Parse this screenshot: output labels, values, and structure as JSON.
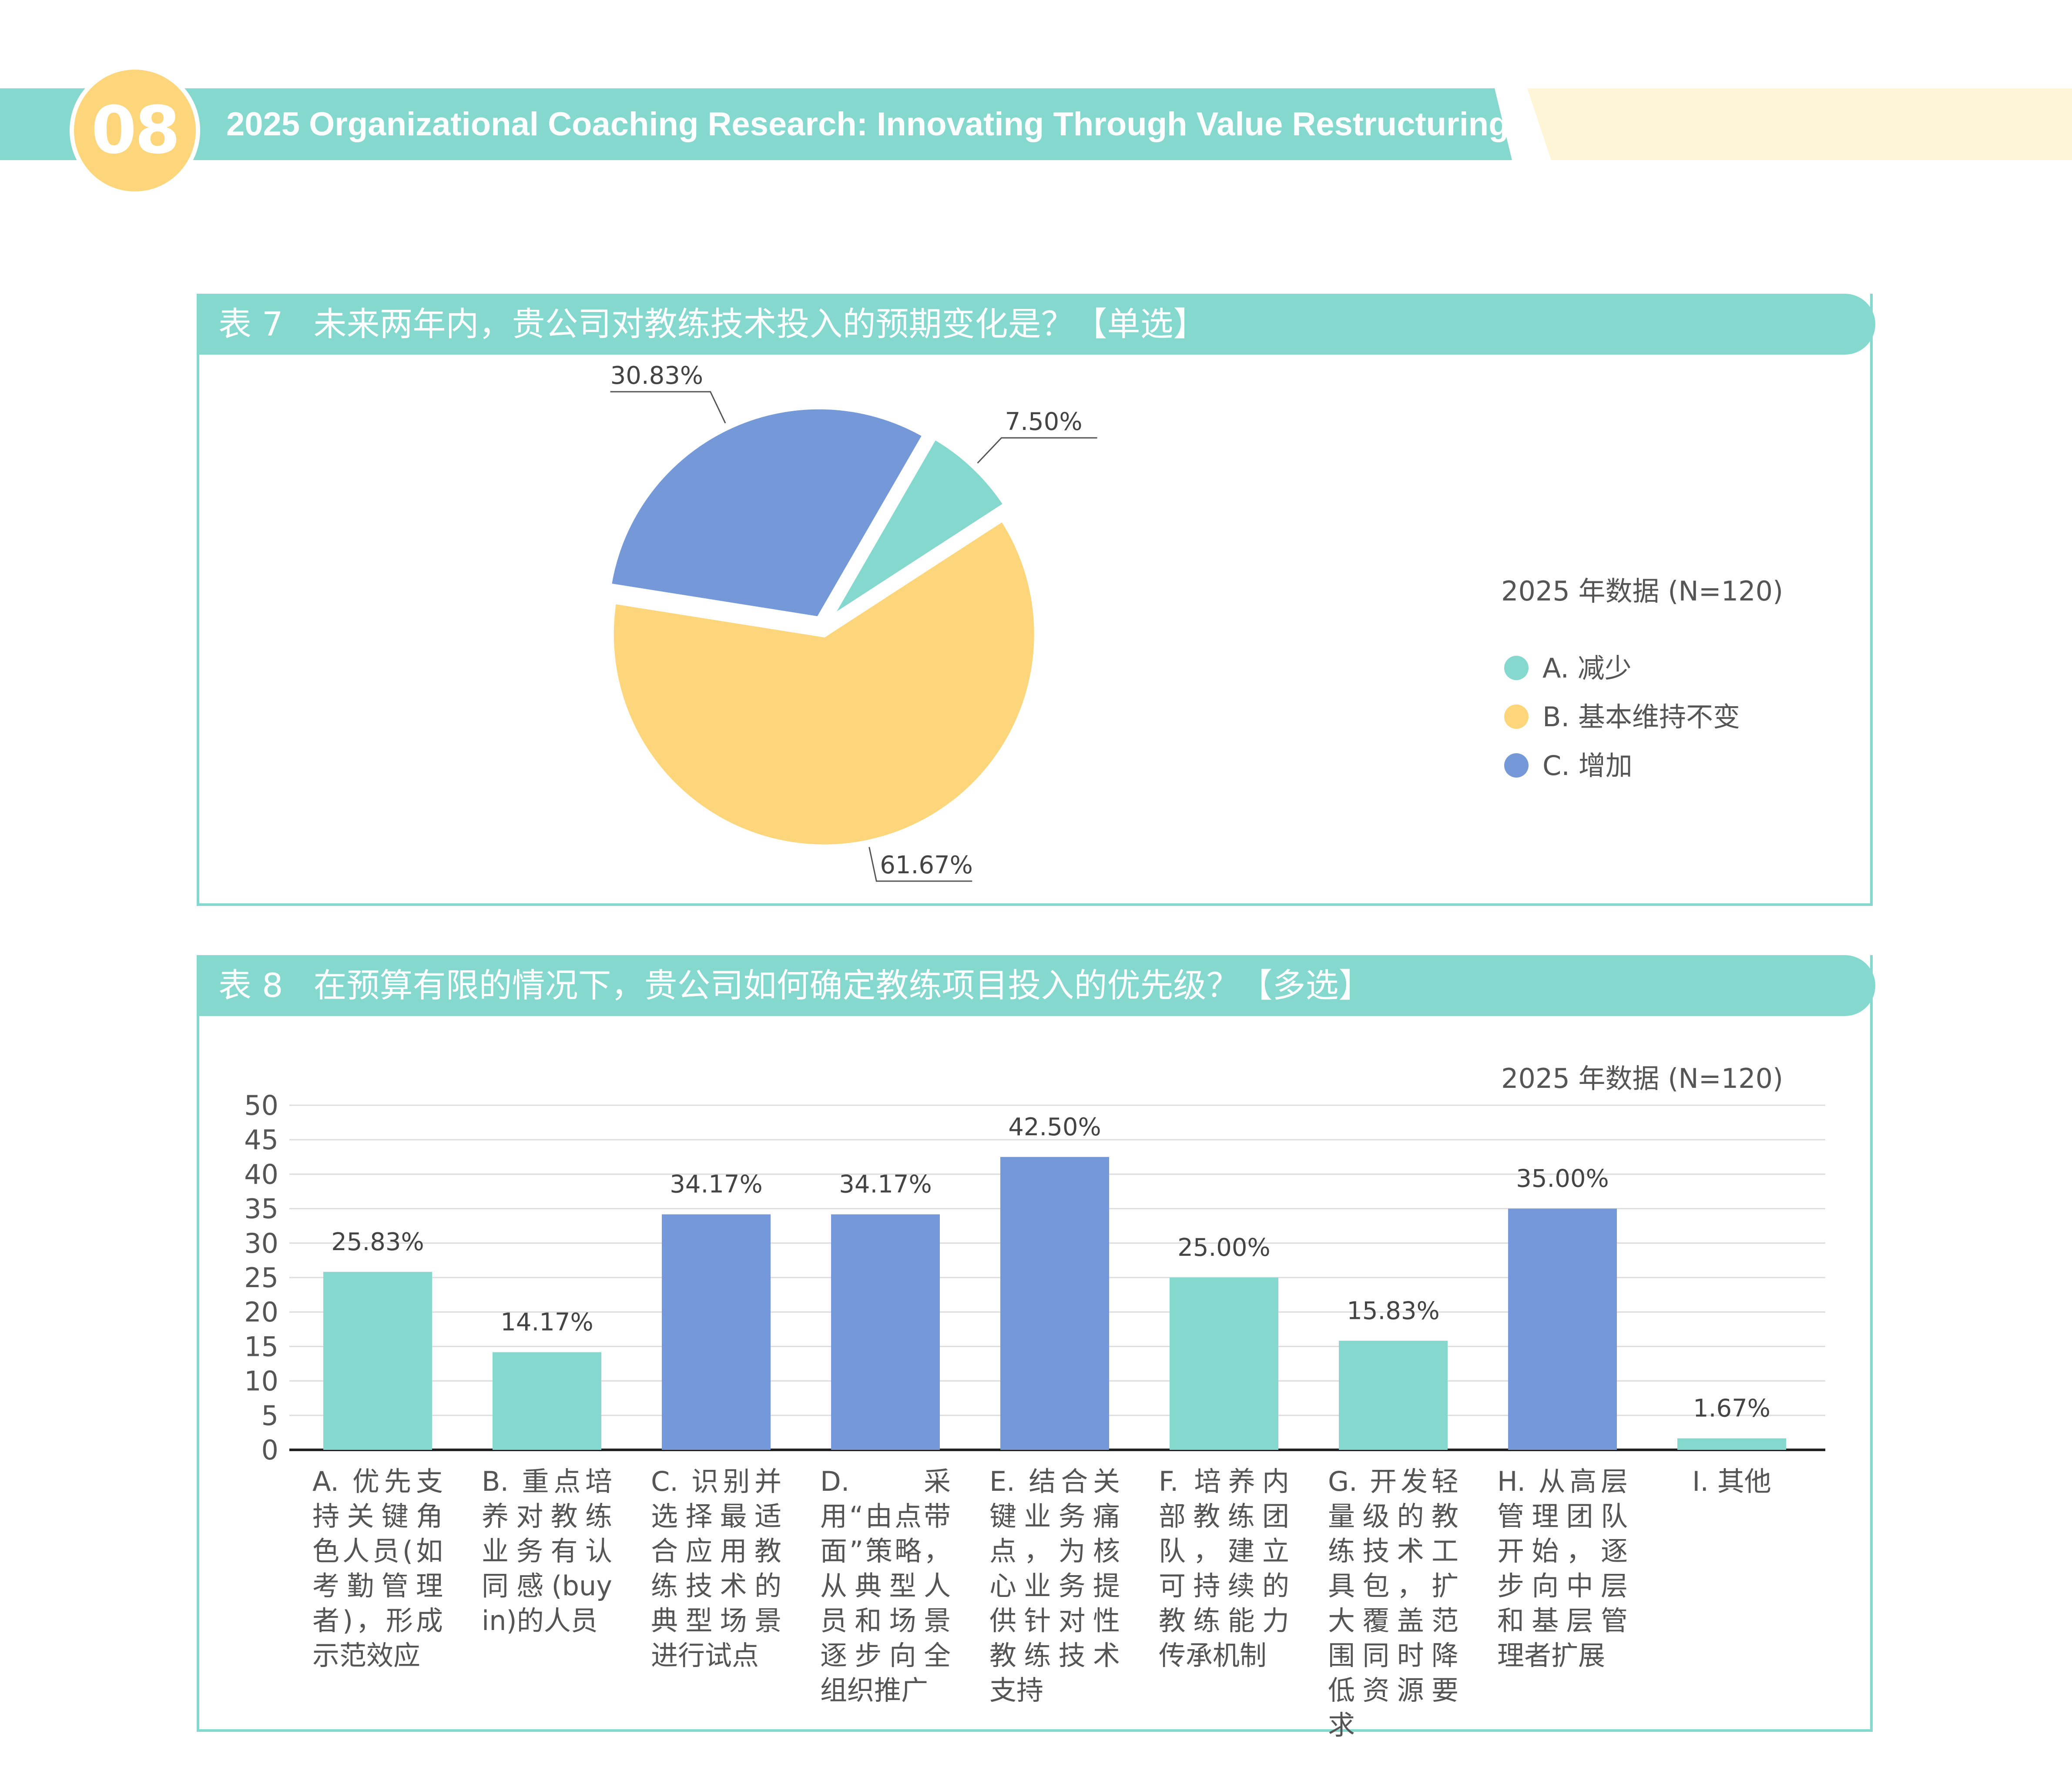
{
  "header": {
    "section_number": "08",
    "title": "2025 Organizational Coaching Research: Innovating Through Value Restructuring"
  },
  "table7": {
    "number": "表 7",
    "question": "未来两年内，贵公司对教练技术投入的预期变化是？【单选】",
    "legend_title": "2025 年数据 (N=120)"
  },
  "table8": {
    "number": "表 8",
    "question": "在预算有限的情况下，贵公司如何确定教练项目投入的优先级？【多选】",
    "legend_title": "2025 年数据 (N=120)"
  },
  "colors": {
    "teal": "#84d8cd",
    "yellow": "#fdd67b",
    "blue": "#7599d8",
    "cream": "#fef4d6"
  },
  "chart_data": [
    {
      "type": "pie",
      "title": "未来两年内，贵公司对教练技术投入的预期变化是？【单选】",
      "legend_title": "2025 年数据 (N=120)",
      "legend_position": "right",
      "slices": [
        {
          "key": "A",
          "label": "A. 减少",
          "value": 7.5,
          "value_label": "7.50%",
          "color": "#84d8cd"
        },
        {
          "key": "B",
          "label": "B. 基本维持不变",
          "value": 61.67,
          "value_label": "61.67%",
          "color": "#fdd67b"
        },
        {
          "key": "C",
          "label": "C. 增加",
          "value": 30.83,
          "value_label": "30.83%",
          "color": "#7599d8"
        }
      ]
    },
    {
      "type": "bar",
      "title": "在预算有限的情况下，贵公司如何确定教练项目投入的优先级？【多选】",
      "legend_title": "2025 年数据 (N=120)",
      "ylim": [
        0,
        50
      ],
      "yticks": [
        0,
        5,
        10,
        15,
        20,
        25,
        30,
        35,
        40,
        45,
        50
      ],
      "grid": true,
      "categories": [
        "A. 优先支持关键角色人员(如考勤管理者)，形成示范效应",
        "B. 重点培养对教练业务有认同感(buy in)的人员",
        "C. 识别并选择最适合应用教练技术的典型场景进行试点",
        "D. 采用“由点带面”策略，从典型人员和场景逐步向全组织推广",
        "E. 结合关键业务痛点，为核心业务提供针对性教练技术支持",
        "F. 培养内部教练团队，建立可持续的教练能力传承机制",
        "G. 开发轻量级的教练技术工具包，扩大覆盖范围同时降低资源要求",
        "H. 从高层管理团队开始，逐步向中层和基层管理者扩展",
        "I. 其他"
      ],
      "values": [
        25.83,
        14.17,
        34.17,
        34.17,
        42.5,
        25.0,
        15.83,
        35.0,
        1.67
      ],
      "value_labels": [
        "25.83%",
        "14.17%",
        "34.17%",
        "34.17%",
        "42.50%",
        "25.00%",
        "15.83%",
        "35.00%",
        "1.67%"
      ],
      "bar_colors": [
        "#84d8cd",
        "#84d8cd",
        "#7599d8",
        "#7599d8",
        "#7599d8",
        "#84d8cd",
        "#84d8cd",
        "#7599d8",
        "#84d8cd"
      ]
    }
  ]
}
